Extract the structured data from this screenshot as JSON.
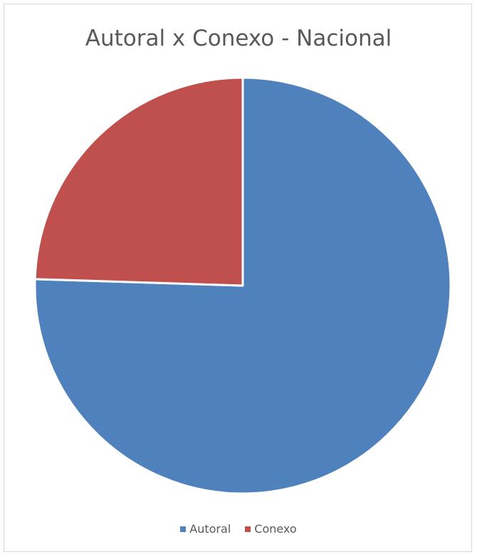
{
  "chart_data": {
    "type": "pie",
    "title": "Autoral x Conexo - Nacional",
    "labels": [
      "Autoral",
      "Conexo"
    ],
    "values": [
      75.5,
      24.5
    ],
    "colors": [
      "#4f81bd",
      "#c0504d"
    ],
    "legend_position": "bottom",
    "start_angle_deg": 0,
    "direction": "clockwise"
  }
}
